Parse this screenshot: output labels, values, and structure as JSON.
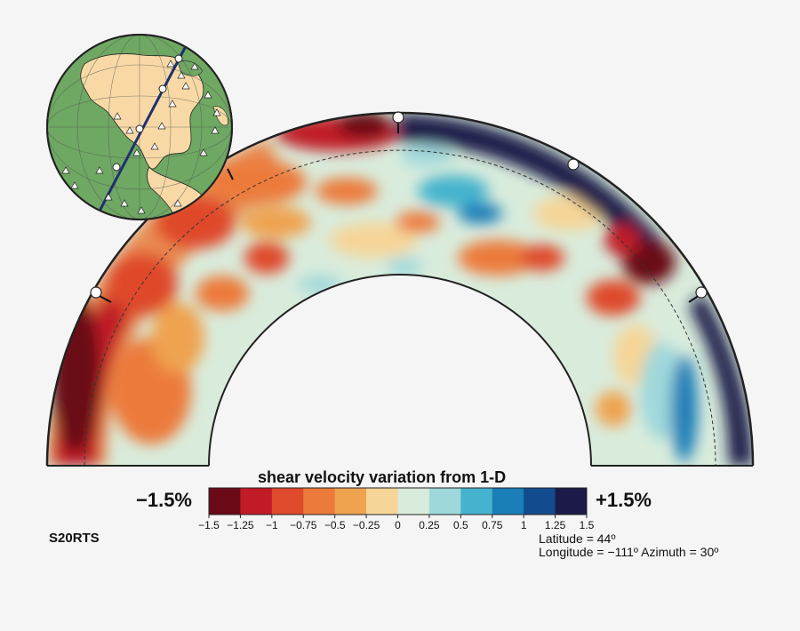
{
  "colorbar": {
    "title": "shear velocity variation from 1-D",
    "min_label": "−1.5%",
    "max_label": "+1.5%",
    "ticks": [
      "−1.5",
      "−1.25",
      "−1",
      "−0.75",
      "−0.5",
      "−0.25",
      "0",
      "0.25",
      "0.5",
      "0.75",
      "1",
      "1.25",
      "1.5"
    ],
    "colors": [
      "#6b0a17",
      "#c01b27",
      "#df4a2c",
      "#ec7a3a",
      "#efa34f",
      "#f6d598",
      "#d9ecdc",
      "#9fd8db",
      "#45b3cd",
      "#1a7eb8",
      "#134c8e",
      "#1c1a48"
    ]
  },
  "model": {
    "name": "S20RTS"
  },
  "location": {
    "latitude_line": "Latitude = 44º",
    "longitude_line": "Longitude = −111º  Azimuth = 30º"
  },
  "colors": {
    "background": "#f5f5f5",
    "ocean": "#6ea862",
    "land": "#f8d9a6",
    "path": "#1f2f6f"
  }
}
